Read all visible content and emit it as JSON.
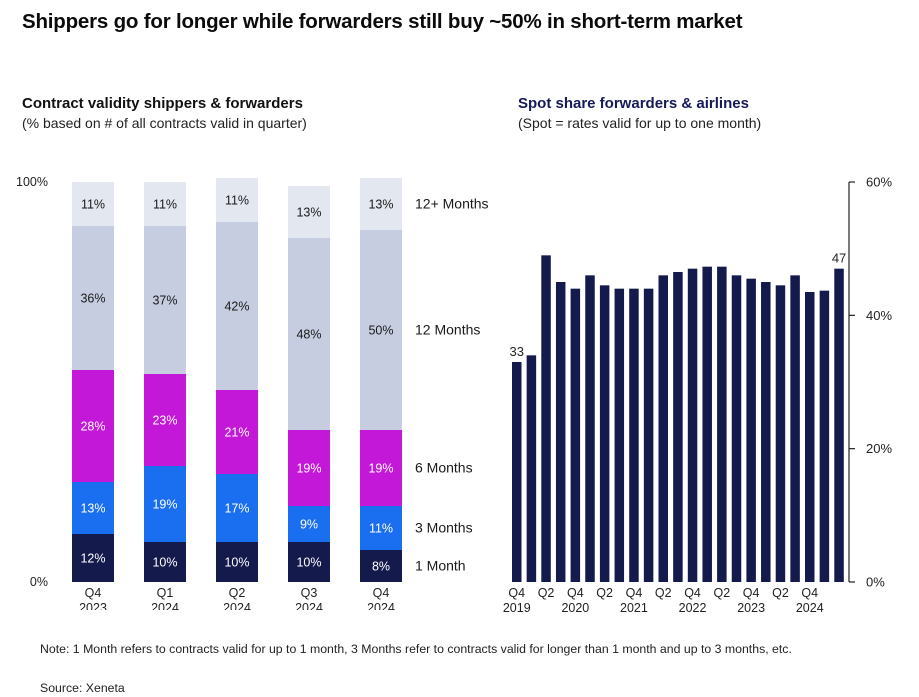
{
  "title": "Shippers go for longer while forwarders still buy ~50% in short-term market",
  "left_panel": {
    "title": "Contract validity shippers & forwarders",
    "subtitle": "(% based on # of all contracts valid in quarter)"
  },
  "right_panel": {
    "title": "Spot share forwarders & airlines",
    "subtitle": "(Spot = rates valid for up to one month)"
  },
  "note": "Note: 1 Month refers to contracts valid for up to 1 month, 3 Months refer to contracts valid for longer than 1 month and up to 3 months, etc.",
  "source": "Source: Xeneta",
  "colors": {
    "1 Month": "#141a4c",
    "3 Months": "#1a6ef0",
    "6 Months": "#c418d9",
    "12 Months": "#c6cde0",
    "12+ Months": "#e3e7f0",
    "spot_bar": "#141a4c"
  },
  "chart_data": [
    {
      "type": "bar",
      "stacked": true,
      "percent_stacked": true,
      "categories": [
        [
          "Q4",
          "2023"
        ],
        [
          "Q1",
          "2024"
        ],
        [
          "Q2",
          "2024"
        ],
        [
          "Q3",
          "2024"
        ],
        [
          "Q4",
          "2024"
        ]
      ],
      "series": [
        {
          "name": "1 Month",
          "values": [
            12,
            10,
            10,
            10,
            8
          ]
        },
        {
          "name": "3 Months",
          "values": [
            13,
            19,
            17,
            9,
            11
          ]
        },
        {
          "name": "6 Months",
          "values": [
            28,
            23,
            21,
            19,
            19
          ]
        },
        {
          "name": "12 Months",
          "values": [
            36,
            37,
            42,
            48,
            50
          ]
        },
        {
          "name": "12+ Months",
          "values": [
            11,
            11,
            11,
            13,
            13
          ]
        }
      ],
      "data_labels": [
        [
          "12%",
          "10%",
          "10%",
          "10%",
          "8%"
        ],
        [
          "13%",
          "19%",
          "17%",
          "9%",
          "11%"
        ],
        [
          "28%",
          "23%",
          "21%",
          "19%",
          "19%"
        ],
        [
          "36%",
          "37%",
          "42%",
          "48%",
          "50%"
        ],
        [
          "11%",
          "11%",
          "11%",
          "13%",
          "13%"
        ]
      ],
      "ylim": [
        0,
        100
      ],
      "y_ticks": [
        "0%",
        "100%"
      ],
      "legend_placement": "right"
    },
    {
      "type": "bar",
      "values": [
        33,
        34,
        49,
        45,
        44,
        46,
        44.5,
        44,
        44,
        44,
        46,
        46.5,
        47,
        47.3,
        47.3,
        46,
        45.5,
        45,
        44.5,
        46,
        43.5,
        43.7,
        47
      ],
      "x_labels": [
        [
          "Q4",
          "2019"
        ],
        [
          "Q2",
          ""
        ],
        [
          "Q4",
          "2020"
        ],
        [
          "Q2",
          ""
        ],
        [
          "Q4",
          "2021"
        ],
        [
          "Q2",
          ""
        ],
        [
          "Q4",
          "2022"
        ],
        [
          "Q2",
          ""
        ],
        [
          "Q4",
          "2023"
        ],
        [
          "Q2",
          ""
        ],
        [
          "Q4",
          "2024"
        ]
      ],
      "x_label_every": 2,
      "annotations": [
        {
          "index": 0,
          "text": "33"
        },
        {
          "index": 22,
          "text": "47"
        }
      ],
      "ylim": [
        0,
        60
      ],
      "y_ticks": [
        "0%",
        "20%",
        "40%",
        "60%"
      ],
      "y_axis_side": "right"
    }
  ]
}
